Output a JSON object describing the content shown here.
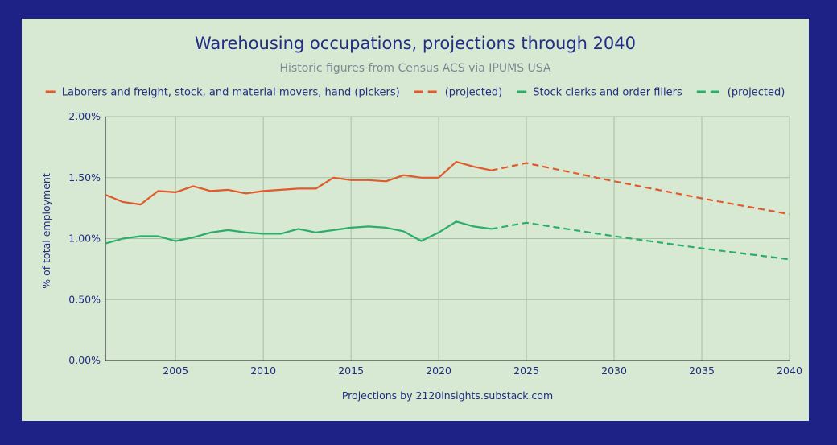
{
  "chart_data": {
    "type": "line",
    "title": "Warehousing occupations, projections through 2040",
    "subtitle": "Historic figures from Census ACS via IPUMS USA",
    "xlabel": "Projections by 2120insights.substack.com",
    "ylabel": "% of total employment",
    "xlim": [
      2001,
      2040
    ],
    "ylim": [
      0,
      2.0
    ],
    "x_ticks": [
      2005,
      2010,
      2015,
      2020,
      2025,
      2030,
      2035,
      2040
    ],
    "y_ticks": [
      0,
      0.5,
      1.0,
      1.5,
      2.0
    ],
    "y_tick_labels": [
      "0.00%",
      "0.50%",
      "1.00%",
      "1.50%",
      "2.00%"
    ],
    "legend": [
      {
        "label": "Laborers and freight, stock, and material movers, hand (pickers)",
        "color": "#e05a2b",
        "dashed": false
      },
      {
        "label": "(projected)",
        "color": "#e05a2b",
        "dashed": true
      },
      {
        "label": "Stock clerks and order fillers",
        "color": "#2cad6a",
        "dashed": false
      },
      {
        "label": "(projected)",
        "color": "#2cad6a",
        "dashed": true
      }
    ],
    "series": [
      {
        "name": "Laborers and freight, stock, and material movers, hand (pickers)",
        "color": "#e05a2b",
        "dashed": false,
        "x": [
          2001,
          2002,
          2003,
          2004,
          2005,
          2006,
          2007,
          2008,
          2009,
          2010,
          2011,
          2012,
          2013,
          2014,
          2015,
          2016,
          2017,
          2018,
          2019,
          2020,
          2021,
          2022,
          2023
        ],
        "values": [
          1.36,
          1.3,
          1.28,
          1.39,
          1.38,
          1.43,
          1.39,
          1.4,
          1.37,
          1.39,
          1.4,
          1.41,
          1.41,
          1.5,
          1.48,
          1.48,
          1.47,
          1.52,
          1.5,
          1.5,
          1.63,
          1.59,
          1.56
        ]
      },
      {
        "name": "Laborers and freight, stock, and material movers, hand (projected)",
        "color": "#e05a2b",
        "dashed": true,
        "x": [
          2023,
          2025,
          2030,
          2035,
          2040
        ],
        "values": [
          1.56,
          1.62,
          1.47,
          1.33,
          1.2
        ]
      },
      {
        "name": "Stock clerks and order fillers",
        "color": "#2cad6a",
        "dashed": false,
        "x": [
          2001,
          2002,
          2003,
          2004,
          2005,
          2006,
          2007,
          2008,
          2009,
          2010,
          2011,
          2012,
          2013,
          2014,
          2015,
          2016,
          2017,
          2018,
          2019,
          2020,
          2021,
          2022,
          2023
        ],
        "values": [
          0.96,
          1.0,
          1.02,
          1.02,
          0.98,
          1.01,
          1.05,
          1.07,
          1.05,
          1.04,
          1.04,
          1.08,
          1.05,
          1.07,
          1.09,
          1.1,
          1.09,
          1.06,
          0.98,
          1.05,
          1.14,
          1.1,
          1.08
        ]
      },
      {
        "name": "Stock clerks and order fillers (projected)",
        "color": "#2cad6a",
        "dashed": true,
        "x": [
          2023,
          2025,
          2030,
          2035,
          2040
        ],
        "values": [
          1.08,
          1.13,
          1.02,
          0.92,
          0.83
        ]
      }
    ]
  }
}
